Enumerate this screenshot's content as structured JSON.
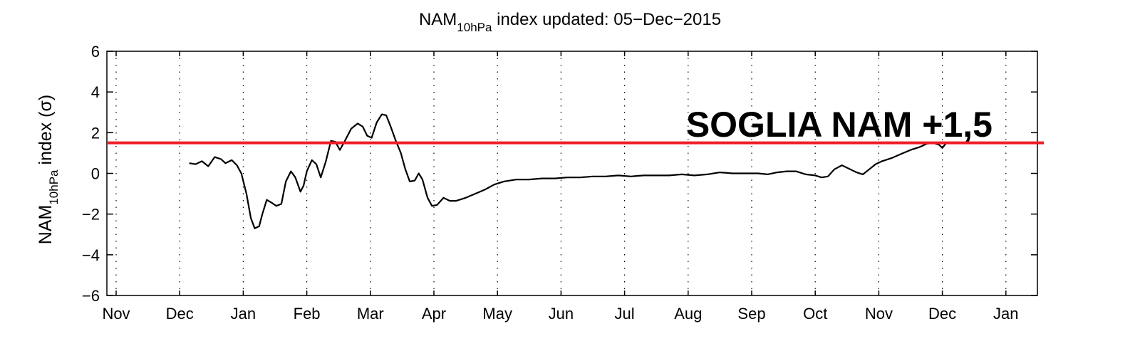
{
  "chart_data": {
    "type": "line",
    "title": {
      "main": "NAM",
      "sub": "10hPa",
      "rest": " index updated: 05−Dec−2015"
    },
    "ylabel": {
      "main": "NAM",
      "sub": "10hPa",
      "rest": " index (σ)"
    },
    "xlabel": "",
    "ylim": [
      -6,
      6
    ],
    "yticks": [
      -6,
      -4,
      -2,
      0,
      2,
      4,
      6
    ],
    "ytick_labels": [
      "−6",
      "−4",
      "−2",
      "0",
      "2",
      "4",
      "6"
    ],
    "xlim": [
      0,
      14.5
    ],
    "xticks": [
      {
        "x": 0,
        "label": "Nov"
      },
      {
        "x": 1,
        "label": "Dec"
      },
      {
        "x": 2,
        "label": "Jan"
      },
      {
        "x": 3,
        "label": "Feb"
      },
      {
        "x": 4,
        "label": "Mar"
      },
      {
        "x": 5,
        "label": "Apr"
      },
      {
        "x": 6,
        "label": "May"
      },
      {
        "x": 7,
        "label": "Jun"
      },
      {
        "x": 8,
        "label": "Jul"
      },
      {
        "x": 9,
        "label": "Aug"
      },
      {
        "x": 10,
        "label": "Sep"
      },
      {
        "x": 11,
        "label": "Oct"
      },
      {
        "x": 12,
        "label": "Nov"
      },
      {
        "x": 13,
        "label": "Dec"
      },
      {
        "x": 14,
        "label": "Jan"
      }
    ],
    "grid": "vertical dotted at month ticks",
    "series": [
      {
        "color": "#000000",
        "points": [
          [
            1.15,
            0.5
          ],
          [
            1.25,
            0.45
          ],
          [
            1.35,
            0.6
          ],
          [
            1.45,
            0.35
          ],
          [
            1.55,
            0.8
          ],
          [
            1.65,
            0.7
          ],
          [
            1.72,
            0.5
          ],
          [
            1.82,
            0.65
          ],
          [
            1.9,
            0.4
          ],
          [
            1.97,
            0.0
          ],
          [
            2.05,
            -1.0
          ],
          [
            2.12,
            -2.2
          ],
          [
            2.18,
            -2.7
          ],
          [
            2.25,
            -2.6
          ],
          [
            2.3,
            -2.0
          ],
          [
            2.37,
            -1.3
          ],
          [
            2.45,
            -1.45
          ],
          [
            2.52,
            -1.6
          ],
          [
            2.6,
            -1.5
          ],
          [
            2.67,
            -0.4
          ],
          [
            2.75,
            0.1
          ],
          [
            2.82,
            -0.2
          ],
          [
            2.9,
            -0.9
          ],
          [
            2.95,
            -0.6
          ],
          [
            3.0,
            0.1
          ],
          [
            3.08,
            0.65
          ],
          [
            3.15,
            0.45
          ],
          [
            3.22,
            -0.2
          ],
          [
            3.3,
            0.6
          ],
          [
            3.38,
            1.6
          ],
          [
            3.45,
            1.55
          ],
          [
            3.52,
            1.15
          ],
          [
            3.6,
            1.6
          ],
          [
            3.7,
            2.2
          ],
          [
            3.8,
            2.45
          ],
          [
            3.88,
            2.3
          ],
          [
            3.95,
            1.85
          ],
          [
            4.02,
            1.75
          ],
          [
            4.1,
            2.5
          ],
          [
            4.18,
            2.9
          ],
          [
            4.25,
            2.85
          ],
          [
            4.32,
            2.3
          ],
          [
            4.4,
            1.6
          ],
          [
            4.48,
            1.0
          ],
          [
            4.55,
            0.2
          ],
          [
            4.62,
            -0.4
          ],
          [
            4.7,
            -0.35
          ],
          [
            4.76,
            0.0
          ],
          [
            4.82,
            -0.3
          ],
          [
            4.9,
            -1.2
          ],
          [
            4.97,
            -1.6
          ],
          [
            5.05,
            -1.55
          ],
          [
            5.15,
            -1.2
          ],
          [
            5.25,
            -1.35
          ],
          [
            5.35,
            -1.35
          ],
          [
            5.5,
            -1.2
          ],
          [
            5.65,
            -1.0
          ],
          [
            5.8,
            -0.8
          ],
          [
            5.95,
            -0.55
          ],
          [
            6.1,
            -0.4
          ],
          [
            6.3,
            -0.3
          ],
          [
            6.5,
            -0.3
          ],
          [
            6.7,
            -0.25
          ],
          [
            6.9,
            -0.25
          ],
          [
            7.1,
            -0.2
          ],
          [
            7.3,
            -0.2
          ],
          [
            7.5,
            -0.15
          ],
          [
            7.7,
            -0.15
          ],
          [
            7.9,
            -0.1
          ],
          [
            8.1,
            -0.15
          ],
          [
            8.3,
            -0.1
          ],
          [
            8.5,
            -0.1
          ],
          [
            8.7,
            -0.1
          ],
          [
            8.9,
            -0.05
          ],
          [
            9.1,
            -0.1
          ],
          [
            9.3,
            -0.05
          ],
          [
            9.5,
            0.05
          ],
          [
            9.7,
            0.0
          ],
          [
            9.9,
            0.0
          ],
          [
            10.1,
            0.0
          ],
          [
            10.25,
            -0.05
          ],
          [
            10.4,
            0.05
          ],
          [
            10.55,
            0.1
          ],
          [
            10.7,
            0.1
          ],
          [
            10.85,
            -0.05
          ],
          [
            11.0,
            -0.1
          ],
          [
            11.1,
            -0.2
          ],
          [
            11.2,
            -0.15
          ],
          [
            11.3,
            0.2
          ],
          [
            11.42,
            0.4
          ],
          [
            11.55,
            0.2
          ],
          [
            11.65,
            0.05
          ],
          [
            11.75,
            -0.05
          ],
          [
            11.85,
            0.2
          ],
          [
            11.95,
            0.45
          ],
          [
            12.05,
            0.6
          ],
          [
            12.2,
            0.75
          ],
          [
            12.35,
            0.95
          ],
          [
            12.5,
            1.15
          ],
          [
            12.65,
            1.3
          ],
          [
            12.75,
            1.45
          ],
          [
            12.85,
            1.5
          ],
          [
            12.95,
            1.4
          ],
          [
            13.0,
            1.25
          ],
          [
            13.05,
            1.45
          ]
        ]
      }
    ],
    "threshold_line": {
      "y": 1.5,
      "color": "#ee1c25"
    },
    "annotations": [
      {
        "text": "SOGLIA NAM +1,5"
      }
    ]
  }
}
